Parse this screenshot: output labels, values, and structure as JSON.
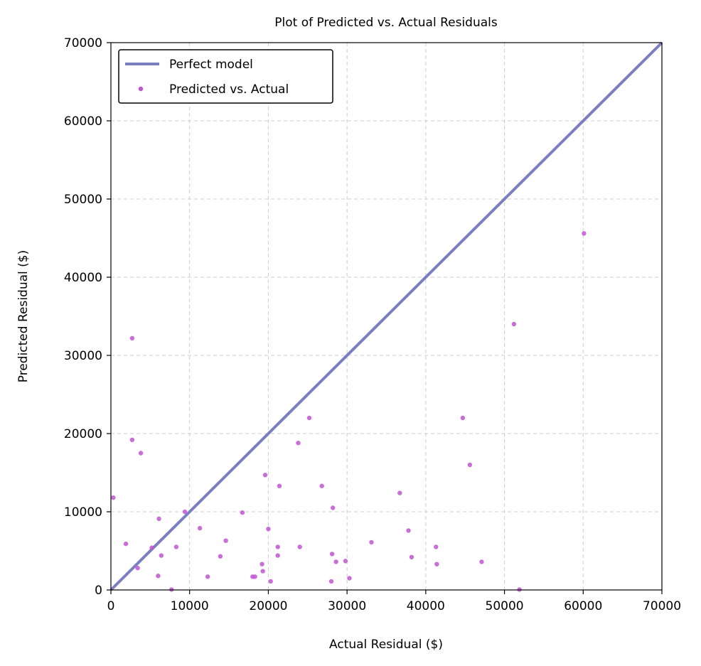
{
  "chart_data": {
    "type": "scatter",
    "title": "Plot of Predicted vs. Actual Residuals",
    "xlabel": "Actual Residual ($)",
    "ylabel": "Predicted Residual ($)",
    "xlim": [
      0,
      70000
    ],
    "ylim": [
      0,
      70000
    ],
    "xticks": [
      0,
      10000,
      20000,
      30000,
      40000,
      50000,
      60000,
      70000
    ],
    "yticks": [
      0,
      10000,
      20000,
      30000,
      40000,
      50000,
      60000,
      70000
    ],
    "xtick_labels": [
      "0",
      "10000",
      "20000",
      "30000",
      "40000",
      "50000",
      "60000",
      "70000"
    ],
    "ytick_labels": [
      "0",
      "10000",
      "20000",
      "30000",
      "40000",
      "50000",
      "60000",
      "70000"
    ],
    "grid": true,
    "legend_position": "top-left",
    "series": [
      {
        "name": "Perfect model",
        "kind": "line",
        "color": "#7b7fc1",
        "x": [
          0,
          70000
        ],
        "y": [
          0,
          70000
        ]
      },
      {
        "name": "Predicted vs. Actual",
        "kind": "scatter",
        "color": "#bf55d0",
        "x": [
          300,
          1900,
          2700,
          2700,
          3400,
          3800,
          5200,
          6000,
          6100,
          6400,
          7700,
          8300,
          9400,
          11300,
          12300,
          13900,
          14600,
          16700,
          18000,
          18300,
          19200,
          19300,
          19600,
          20000,
          20300,
          21200,
          21200,
          21400,
          23800,
          24000,
          25200,
          26800,
          28000,
          28100,
          28200,
          28600,
          29800,
          30300,
          33100,
          36700,
          37800,
          38200,
          41300,
          41400,
          44700,
          45600,
          47100,
          51200,
          51900,
          60100
        ],
        "y": [
          11800,
          5900,
          32200,
          19200,
          2800,
          17500,
          5400,
          1800,
          9100,
          4400,
          50,
          5500,
          10000,
          7900,
          1700,
          4300,
          6300,
          9900,
          1700,
          1700,
          3300,
          2400,
          14700,
          7800,
          1100,
          4400,
          5500,
          13300,
          18800,
          5500,
          22000,
          13300,
          1100,
          4600,
          10500,
          3600,
          3700,
          1500,
          6100,
          12400,
          7600,
          4200,
          5500,
          3300,
          22000,
          16000,
          3600,
          34000,
          50,
          45600
        ]
      }
    ]
  }
}
